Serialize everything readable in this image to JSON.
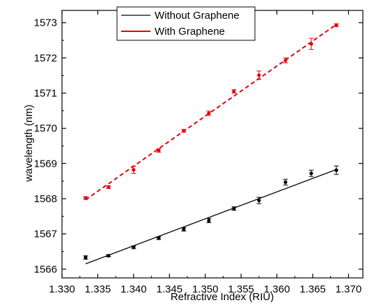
{
  "chart_data": {
    "type": "scatter",
    "title": "",
    "xlabel": "Refractive Index (RIU)",
    "ylabel": "wavelength (nm)",
    "xlim": [
      1.33,
      1.372
    ],
    "ylim": [
      1565.75,
      1573.35
    ],
    "x_ticks": [
      "1.330",
      "1.335",
      "1.340",
      "1.345",
      "1.350",
      "1.355",
      "1.360",
      "1.365",
      "1.370"
    ],
    "y_ticks": [
      "1566",
      "1567",
      "1568",
      "1569",
      "1570",
      "1571",
      "1572",
      "1573"
    ],
    "grid": false,
    "legend_position": "top-center",
    "series": [
      {
        "name": "Without Graphene",
        "color": "#000000",
        "x": [
          1.3333,
          1.3365,
          1.34,
          1.3435,
          1.347,
          1.3505,
          1.354,
          1.3575,
          1.3612,
          1.3648,
          1.3683
        ],
        "y": [
          1566.33,
          1566.38,
          1566.62,
          1566.88,
          1567.13,
          1567.38,
          1567.72,
          1567.95,
          1568.47,
          1568.72,
          1568.81
        ],
        "error": [
          0.05,
          0.03,
          0.04,
          0.04,
          0.05,
          0.06,
          0.05,
          0.09,
          0.08,
          0.09,
          0.12
        ],
        "fit": {
          "style": "solid",
          "x": [
            1.3333,
            1.3683
          ],
          "y": [
            1566.15,
            1568.83
          ]
        }
      },
      {
        "name": "With Graphene",
        "color": "#e8000b",
        "x": [
          1.3333,
          1.3365,
          1.34,
          1.3435,
          1.347,
          1.3505,
          1.354,
          1.3575,
          1.3612,
          1.3648,
          1.3683
        ],
        "y": [
          1568.02,
          1568.33,
          1568.82,
          1569.37,
          1569.93,
          1570.43,
          1571.05,
          1571.51,
          1571.93,
          1572.4,
          1572.93
        ],
        "error": [
          0.04,
          0.04,
          0.1,
          0.05,
          0.04,
          0.06,
          0.05,
          0.12,
          0.07,
          0.16,
          0.04
        ],
        "fit": {
          "style": "dashed",
          "x": [
            1.3333,
            1.3683
          ],
          "y": [
            1567.97,
            1572.95
          ]
        }
      }
    ]
  }
}
